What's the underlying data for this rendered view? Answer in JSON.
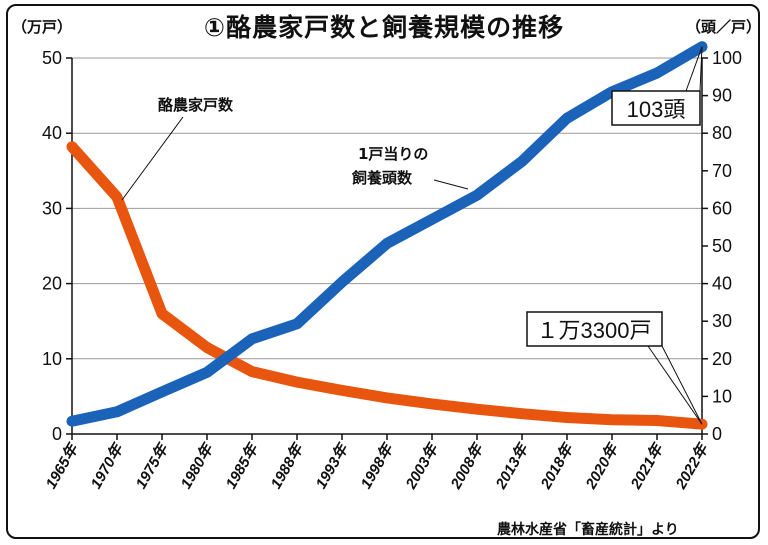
{
  "chart_data": {
    "type": "line",
    "title": "①酪農家戸数と飼養規模の推移",
    "y_left_label": "（万戸）",
    "y_right_label": "（頭／戸）",
    "source": "農林水産省「畜産統計」より",
    "categories": [
      "1965年",
      "1970年",
      "1975年",
      "1980年",
      "1985年",
      "1988年",
      "1993年",
      "1998年",
      "2003年",
      "2008年",
      "2013年",
      "2018年",
      "2020年",
      "2021年",
      "2022年"
    ],
    "y_left_range": [
      0,
      50
    ],
    "y_left_ticks": [
      0,
      10,
      20,
      30,
      40,
      50
    ],
    "y_right_range": [
      0,
      100
    ],
    "y_right_ticks": [
      0,
      10,
      20,
      30,
      40,
      50,
      60,
      70,
      80,
      90,
      100
    ],
    "grid": "horizontal",
    "series": [
      {
        "name": "酪農家戸数",
        "axis": "left",
        "color": "#e8550e",
        "values": [
          38.2,
          31.5,
          16.0,
          11.5,
          8.3,
          6.9,
          5.8,
          4.8,
          4.0,
          3.3,
          2.7,
          2.2,
          1.9,
          1.8,
          1.3
        ]
      },
      {
        "name": "1戸当りの\n飼養頭数",
        "axis": "right",
        "color": "#1a63b8",
        "values": [
          3.4,
          5.9,
          11.2,
          16.4,
          25.3,
          29.3,
          40.4,
          50.7,
          57.1,
          63.5,
          72.5,
          84.0,
          91.0,
          96.0,
          103.0
        ]
      }
    ],
    "annotations": {
      "dairy_label": "酪農家戸数",
      "herd_label_line1": "1戸当りの",
      "herd_label_line2": "飼養頭数",
      "callout_herd": "103頭",
      "callout_farms": "１万3300戸"
    }
  }
}
